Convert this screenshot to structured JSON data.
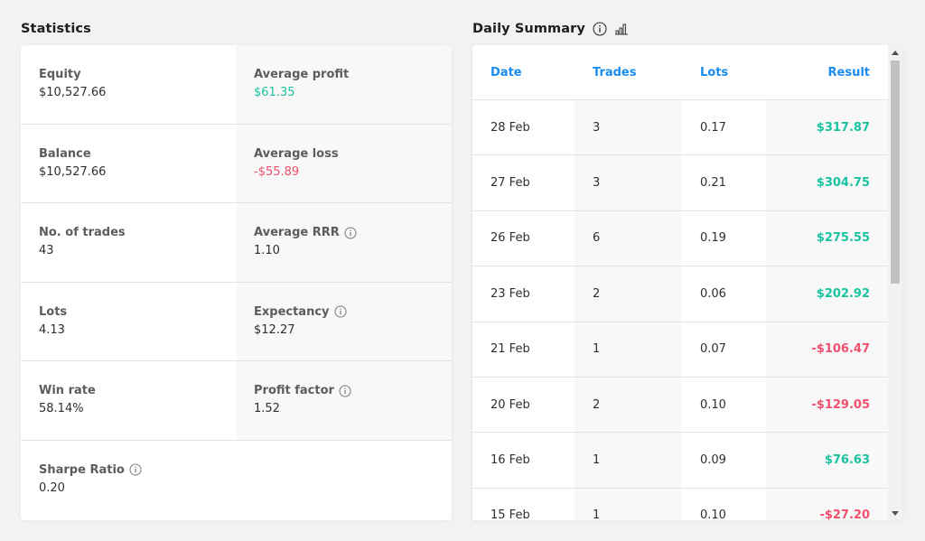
{
  "statistics": {
    "title": "Statistics",
    "rows": [
      {
        "left": {
          "label": "Equity",
          "value": "$10,527.66"
        },
        "right": {
          "label": "Average profit",
          "value": "$61.35"
        }
      },
      {
        "left": {
          "label": "Balance",
          "value": "$10,527.66"
        },
        "right": {
          "label": "Average loss",
          "value": "-$55.89"
        }
      },
      {
        "left": {
          "label": "No. of trades",
          "value": "43"
        },
        "right": {
          "label": "Average RRR",
          "value": "1.10"
        }
      },
      {
        "left": {
          "label": "Lots",
          "value": "4.13"
        },
        "right": {
          "label": "Expectancy",
          "value": "$12.27"
        }
      },
      {
        "left": {
          "label": "Win rate",
          "value": "58.14%"
        },
        "right": {
          "label": "Profit factor",
          "value": "1.52"
        }
      },
      {
        "left": {
          "label": "Sharpe Ratio",
          "value": "0.20"
        }
      }
    ]
  },
  "daily_summary": {
    "title": "Daily Summary",
    "headers": {
      "date": "Date",
      "trades": "Trades",
      "lots": "Lots",
      "result": "Result"
    },
    "rows": [
      {
        "date": "28 Feb",
        "trades": "3",
        "lots": "0.17",
        "result": "$317.87"
      },
      {
        "date": "27 Feb",
        "trades": "3",
        "lots": "0.21",
        "result": "$304.75"
      },
      {
        "date": "26 Feb",
        "trades": "6",
        "lots": "0.19",
        "result": "$275.55"
      },
      {
        "date": "23 Feb",
        "trades": "2",
        "lots": "0.06",
        "result": "$202.92"
      },
      {
        "date": "21 Feb",
        "trades": "1",
        "lots": "0.07",
        "result": "-$106.47"
      },
      {
        "date": "20 Feb",
        "trades": "2",
        "lots": "0.10",
        "result": "-$129.05"
      },
      {
        "date": "16 Feb",
        "trades": "1",
        "lots": "0.09",
        "result": "$76.63"
      },
      {
        "date": "15 Feb",
        "trades": "1",
        "lots": "0.10",
        "result": "-$27.20"
      }
    ]
  },
  "colors": {
    "positive": "#19c3a1",
    "negative": "#f0506e",
    "header_blue": "#1a8cf0"
  },
  "icons": {
    "info": "info-circle-icon",
    "chart": "bar-chart-icon"
  }
}
